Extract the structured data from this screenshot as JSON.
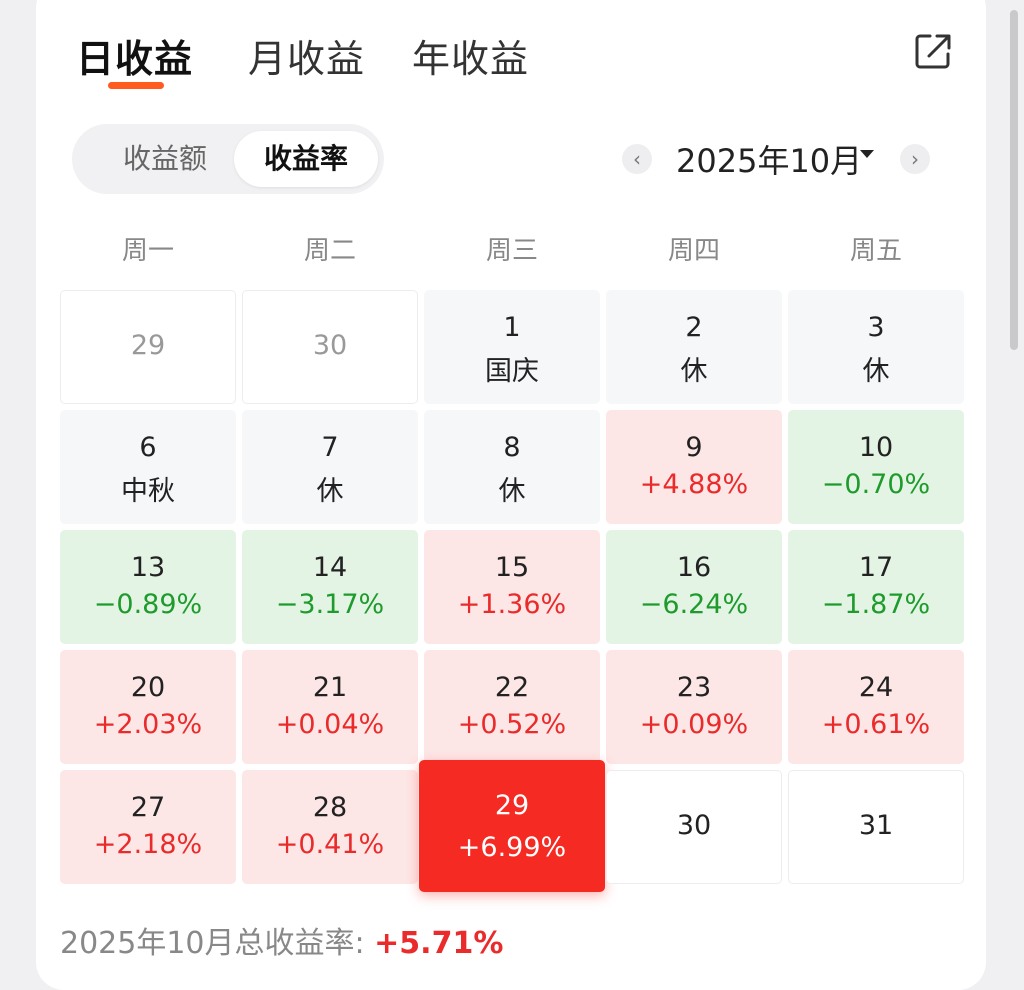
{
  "tabs": [
    "日收益",
    "月收益",
    "年收益"
  ],
  "segment": [
    "收益额",
    "收益率"
  ],
  "month_label": "2025年10月",
  "nav": {
    "prev": "‹",
    "next": "›"
  },
  "weekdays": [
    "周一",
    "周二",
    "周三",
    "周四",
    "周五"
  ],
  "days": [
    {
      "d": "29",
      "sub": "",
      "kind": "other"
    },
    {
      "d": "30",
      "sub": "",
      "kind": "other"
    },
    {
      "d": "1",
      "sub": "国庆",
      "kind": "holiday"
    },
    {
      "d": "2",
      "sub": "休",
      "kind": "holiday"
    },
    {
      "d": "3",
      "sub": "休",
      "kind": "holiday"
    },
    {
      "d": "6",
      "sub": "中秋",
      "kind": "holiday"
    },
    {
      "d": "7",
      "sub": "休",
      "kind": "holiday"
    },
    {
      "d": "8",
      "sub": "休",
      "kind": "holiday"
    },
    {
      "d": "9",
      "sub": "+4.88%",
      "kind": "up"
    },
    {
      "d": "10",
      "sub": "−0.70%",
      "kind": "down"
    },
    {
      "d": "13",
      "sub": "−0.89%",
      "kind": "down"
    },
    {
      "d": "14",
      "sub": "−3.17%",
      "kind": "down"
    },
    {
      "d": "15",
      "sub": "+1.36%",
      "kind": "up"
    },
    {
      "d": "16",
      "sub": "−6.24%",
      "kind": "down"
    },
    {
      "d": "17",
      "sub": "−1.87%",
      "kind": "down"
    },
    {
      "d": "20",
      "sub": "+2.03%",
      "kind": "up"
    },
    {
      "d": "21",
      "sub": "+0.04%",
      "kind": "up"
    },
    {
      "d": "22",
      "sub": "+0.52%",
      "kind": "up"
    },
    {
      "d": "23",
      "sub": "+0.09%",
      "kind": "up"
    },
    {
      "d": "24",
      "sub": "+0.61%",
      "kind": "up"
    },
    {
      "d": "27",
      "sub": "+2.18%",
      "kind": "up"
    },
    {
      "d": "28",
      "sub": "+0.41%",
      "kind": "up"
    },
    {
      "d": "29",
      "sub": "+6.99%",
      "kind": "selected"
    },
    {
      "d": "30",
      "sub": "",
      "kind": "future"
    },
    {
      "d": "31",
      "sub": "",
      "kind": "future"
    }
  ],
  "footer": {
    "label": "2025年10月总收益率: ",
    "value": "+5.71%"
  },
  "colors": {
    "accent": "#ff5a1f",
    "up": "#ea2b2b",
    "down": "#1e9b2c",
    "selected": "#f52a22"
  }
}
